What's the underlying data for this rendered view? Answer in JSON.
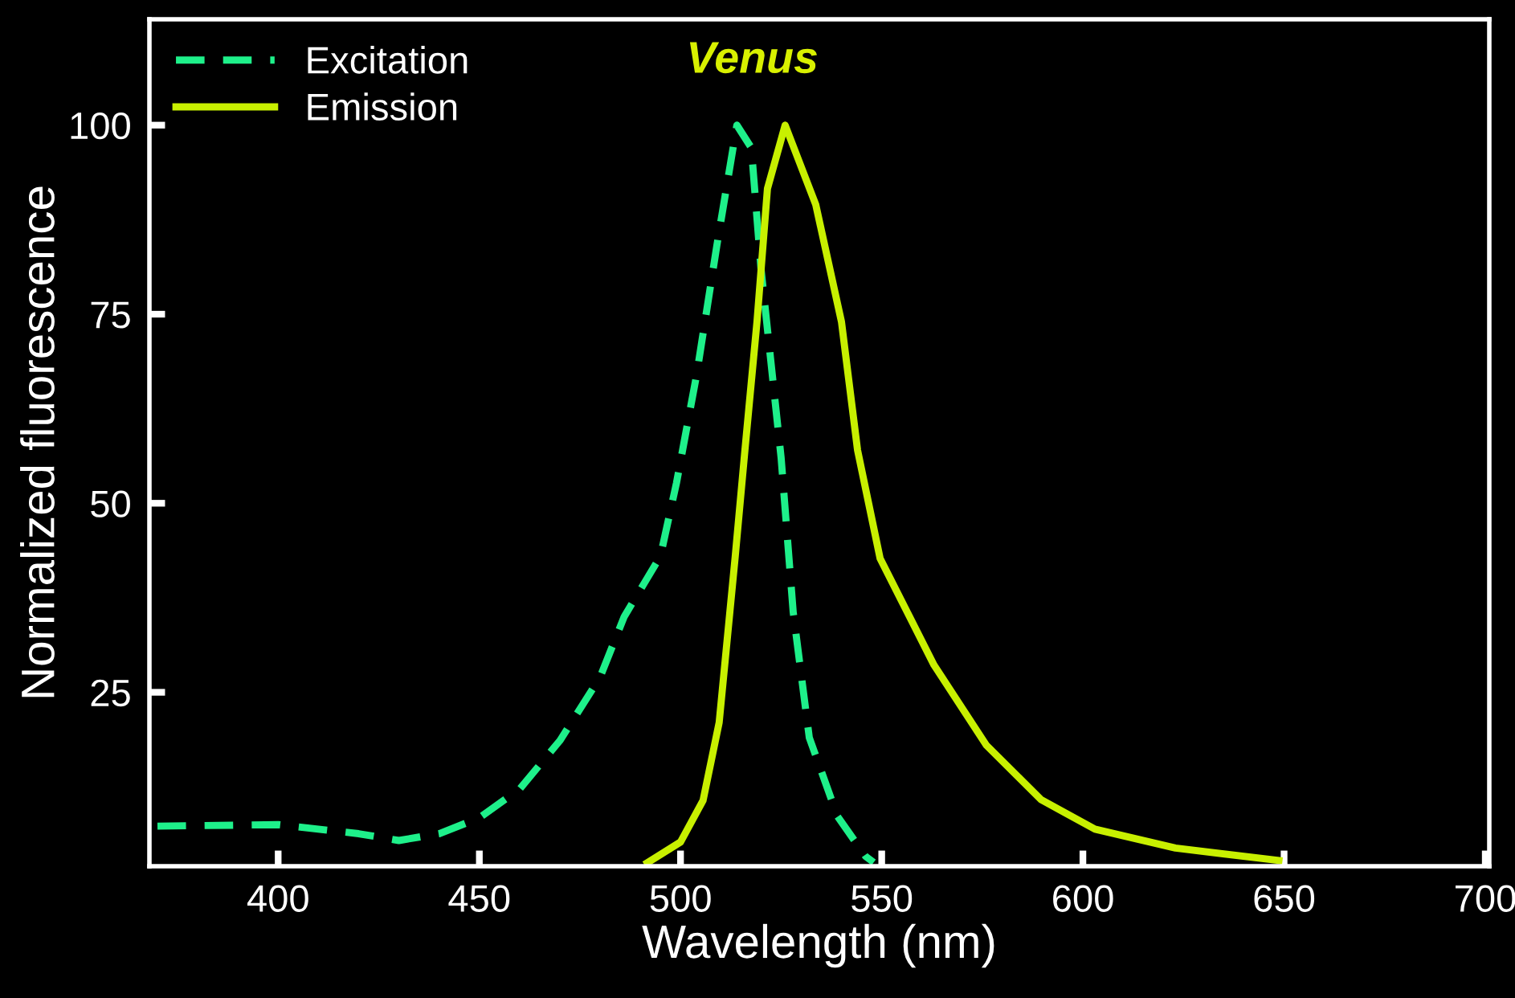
{
  "chart_data": {
    "type": "line",
    "xlabel": "Wavelength (nm)",
    "ylabel": "Normalized fluorescence",
    "annotations": [
      "Venus"
    ],
    "xlim": [
      368,
      701
    ],
    "xticks": [
      400,
      450,
      500,
      550,
      600,
      650,
      700
    ],
    "ylim": [
      2,
      114
    ],
    "yticks": [
      25,
      50,
      75,
      100
    ],
    "legend": "top left",
    "grid": false,
    "marker": "none",
    "series": [
      {
        "name": "Excitation",
        "color": "#1ef08a",
        "line_style": "dashed",
        "x": [
          370,
          400,
          420,
          430,
          440,
          450,
          460,
          470,
          480,
          486,
          495,
          499,
          504,
          509,
          514,
          517.6,
          520,
          525,
          528,
          532,
          539,
          546,
          548
        ],
        "values": [
          7.3,
          7.5,
          6.3,
          5.4,
          6.3,
          8.4,
          12.2,
          18.6,
          27,
          35,
          43,
          52.7,
          67,
          84,
          100,
          97,
          81,
          56,
          35.6,
          19,
          8.6,
          3.3,
          2.5
        ]
      },
      {
        "name": "Emission",
        "color": "#c8f000",
        "line_style": "solid",
        "x": [
          491,
          500,
          505.6,
          509.6,
          513.6,
          516,
          519,
          521.6,
          526,
          533.6,
          540,
          544,
          549.6,
          563,
          576,
          589.6,
          603,
          623,
          649.6
        ],
        "values": [
          2.2,
          5.2,
          10.7,
          21,
          43,
          57,
          74,
          91.6,
          100,
          89.5,
          74,
          57,
          42.7,
          28.6,
          18,
          10.8,
          6.9,
          4.4,
          2.7
        ]
      }
    ]
  }
}
